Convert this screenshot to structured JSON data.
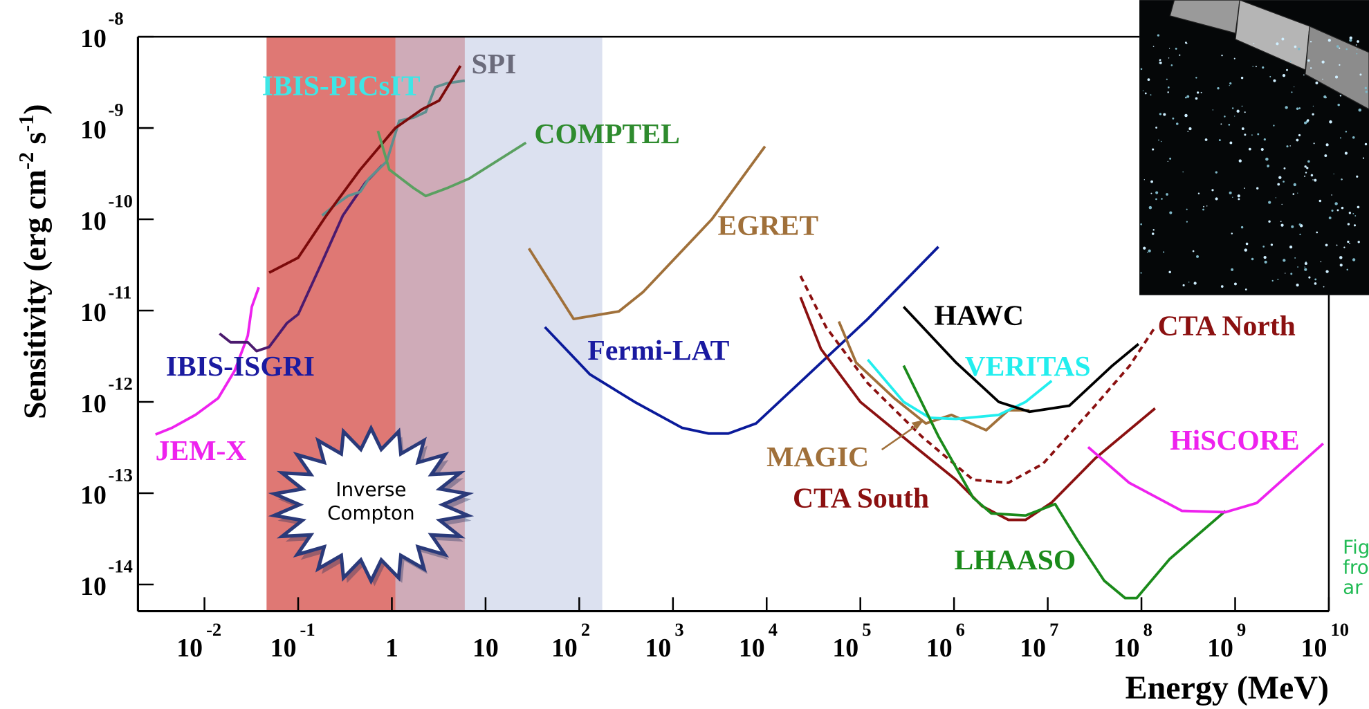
{
  "chart_data": {
    "type": "line",
    "xlog": true,
    "ylog": true,
    "x_label": "Energy (MeV)",
    "y_label": [
      "Sensitivity (erg cm",
      "-2",
      " s",
      "-1",
      ")"
    ],
    "xlim": [
      0.00195,
      10000000000.0
    ],
    "ylim": [
      5.1e-15,
      1e-08
    ],
    "xticks": [
      {
        "value": 0.01,
        "label": "10",
        "exponent": "-2"
      },
      {
        "value": 0.1,
        "label": "10",
        "exponent": "-1"
      },
      1,
      10,
      {
        "value": 100,
        "label": "10",
        "exponent": "2"
      },
      {
        "value": 1000,
        "label": "10",
        "exponent": "3"
      },
      {
        "value": 10000,
        "label": "10",
        "exponent": "4"
      },
      {
        "value": 100000,
        "label": "10",
        "exponent": "5"
      },
      {
        "value": 1000000,
        "label": "10",
        "exponent": "6"
      },
      {
        "value": 10000000,
        "label": "10",
        "exponent": "7"
      },
      {
        "value": 100000000,
        "label": "10",
        "exponent": "8"
      },
      {
        "value": 1000000000,
        "label": "10",
        "exponent": "9"
      },
      {
        "value": 10000000000,
        "label": "10",
        "exponent": "10"
      }
    ],
    "yticks": [
      {
        "value": 1e-08,
        "label": "10",
        "exponent": "-8"
      },
      {
        "value": 1e-09,
        "label": "10",
        "exponent": "-9"
      },
      {
        "value": 1e-10,
        "label": "10",
        "exponent": "-10"
      },
      {
        "value": 1e-11,
        "label": "10",
        "exponent": "-11"
      },
      {
        "value": 1e-12,
        "label": "10",
        "exponent": "-12"
      },
      {
        "value": 1e-13,
        "label": "10",
        "exponent": "-13"
      },
      {
        "value": 1e-14,
        "label": "10",
        "exponent": "-14"
      }
    ],
    "bands": [
      {
        "x": [
          0.046,
          6.0
        ],
        "color": "#d9605c"
      },
      {
        "x": [
          1.09,
          176
        ],
        "color": "#c5cde6"
      }
    ],
    "annotation": [
      "Inverse",
      "Compton"
    ],
    "caption_fragment": [
      "Fig",
      "fro",
      "ar"
    ],
    "series": [
      {
        "name": "JEM-X",
        "color": "#ee22ee",
        "label_color": "#ee22ee",
        "x": [
          0.003,
          0.0045,
          0.008,
          0.014,
          0.021,
          0.029,
          0.032,
          0.038
        ],
        "values": [
          4.4e-13,
          5.2e-13,
          7.2e-13,
          1.1e-12,
          2.2e-12,
          5.3e-12,
          1.1e-11,
          1.8e-11
        ]
      },
      {
        "name": "IBIS-ISGRI",
        "color": "#4b1a6e",
        "label_color": "#1a1aa0",
        "x": [
          0.0145,
          0.019,
          0.029,
          0.036,
          0.049,
          0.076,
          0.1,
          0.18,
          0.3,
          0.52,
          0.79
        ],
        "values": [
          5.6e-12,
          4.5e-12,
          4.5e-12,
          3.6e-12,
          4e-12,
          7.3e-12,
          9.1e-12,
          3.4e-11,
          1.1e-10,
          2.5e-10,
          3.9e-10
        ]
      },
      {
        "name": "IBIS-PICsIT",
        "color": "#5f8f8f",
        "label_color": "#3ee6e6",
        "x": [
          0.18,
          0.24,
          0.34,
          0.46,
          0.57,
          0.88,
          1.2,
          1.7,
          2.3,
          2.9,
          3.9,
          6.0
        ],
        "values": [
          1.1e-10,
          1.4e-10,
          1.8e-10,
          2e-10,
          2.8e-10,
          4.3e-10,
          1.2e-09,
          1.3e-09,
          1.5e-09,
          2.8e-09,
          3.1e-09,
          3.3e-09
        ]
      },
      {
        "name": "SPI",
        "color": "#7b0a0a",
        "label_color": "#6b6b7b",
        "x": [
          0.049,
          0.1,
          0.2,
          0.46,
          1.09,
          2.1,
          3.2,
          5.4
        ],
        "values": [
          2.6e-11,
          3.8e-11,
          1.1e-10,
          3.5e-10,
          1e-09,
          1.6e-09,
          2e-09,
          4.8e-09
        ]
      },
      {
        "name": "COMPTEL",
        "color": "#5aa060",
        "label_color": "#2e8b2e",
        "x": [
          0.71,
          0.94,
          1.7,
          2.3,
          3.9,
          6.7,
          27
        ],
        "values": [
          9.3e-10,
          3.5e-10,
          2.2e-10,
          1.8e-10,
          2.2e-10,
          2.8e-10,
          6.9e-10
        ]
      },
      {
        "name": "EGRET",
        "color": "#a0703a",
        "label_color": "#a0703a",
        "x": [
          29,
          87,
          265,
          480,
          2600,
          9600
        ],
        "values": [
          4.8e-11,
          8.1e-12,
          9.8e-12,
          1.6e-11,
          1e-10,
          6.3e-10
        ]
      },
      {
        "name": "Fermi-LAT",
        "color": "#0a1a9a",
        "label_color": "#1a1aa0",
        "x": [
          43,
          130,
          390,
          1250,
          2400,
          3900,
          7700,
          28000,
          120000,
          680000
        ],
        "values": [
          6.6e-12,
          2e-12,
          1e-12,
          5.2e-13,
          4.5e-13,
          4.5e-13,
          5.8e-13,
          2e-12,
          8.1e-12,
          5e-11
        ]
      },
      {
        "name": "MAGIC",
        "color": "#a0703a",
        "label_color": "#a0703a",
        "x": [
          59000,
          90000,
          230000,
          500000,
          940000,
          2200000,
          3800000,
          6400000
        ],
        "values": [
          7.6e-12,
          2.7e-12,
          1.1e-12,
          5.8e-13,
          7.2e-13,
          4.9e-13,
          8.1e-13,
          8.1e-13
        ]
      },
      {
        "name": "VERITAS",
        "color": "#22eeee",
        "label_color": "#22eeee",
        "x": [
          120000,
          290000,
          550000,
          1050000,
          3000000,
          5800000,
          11000000
        ],
        "values": [
          2.9e-12,
          1e-12,
          6.7e-13,
          6.5e-13,
          7.2e-13,
          1e-12,
          1.7e-12
        ]
      },
      {
        "name": "HAWC",
        "color": "#000000",
        "label_color": "#000000",
        "x": [
          290000,
          1050000,
          3000000,
          6400000,
          17000000,
          49000000,
          93000000
        ],
        "values": [
          1.1e-11,
          2.7e-12,
          1e-12,
          7.8e-13,
          9.1e-13,
          2.5e-12,
          4.3e-12
        ]
      },
      {
        "name": "CTA South",
        "color": "#8b1010",
        "label_color": "#8b1010",
        "x": [
          23000,
          38000,
          100000,
          360000,
          1050000,
          2000000,
          3800000,
          5800000,
          11000000,
          32000000,
          140000000
        ],
        "values": [
          1.4e-11,
          3.8e-12,
          1e-12,
          3.4e-13,
          1.4e-13,
          7.2e-14,
          5.1e-14,
          5.1e-14,
          7.9e-14,
          2.4e-13,
          8.5e-13
        ]
      },
      {
        "name": "CTA North",
        "color": "#8b1010",
        "label_color": "#8b1010",
        "dashed": true,
        "x": [
          23000,
          43000,
          120000,
          450000,
          1600000,
          3800000,
          8900000,
          32000000,
          75000000,
          140000000
        ],
        "values": [
          2.4e-11,
          6.6e-12,
          1.6e-12,
          4.2e-13,
          1.4e-13,
          1.3e-13,
          2.1e-13,
          9.1e-13,
          2.5e-12,
          6.6e-12
        ]
      },
      {
        "name": "LHAASO",
        "color": "#1a8a1a",
        "label_color": "#1a8a1a",
        "x": [
          290000,
          680000,
          1600000,
          2500000,
          5800000,
          12000000,
          21000000,
          40000000,
          67000000,
          89000000,
          200000000,
          790000000
        ],
        "values": [
          2.5e-12,
          4.2e-13,
          8.9e-14,
          6e-14,
          5.7e-14,
          7.6e-14,
          3e-14,
          1.1e-14,
          7.1e-15,
          7.1e-15,
          1.9e-14,
          6.4e-14
        ]
      },
      {
        "name": "HiSCORE",
        "color": "#ee22ee",
        "label_color": "#ee22ee",
        "x": [
          27000000,
          74000000,
          270000000,
          790000000,
          1700000000,
          8700000000
        ],
        "values": [
          3.2e-13,
          1.3e-13,
          6.4e-14,
          6.2e-14,
          7.8e-14,
          3.5e-13
        ]
      }
    ]
  }
}
